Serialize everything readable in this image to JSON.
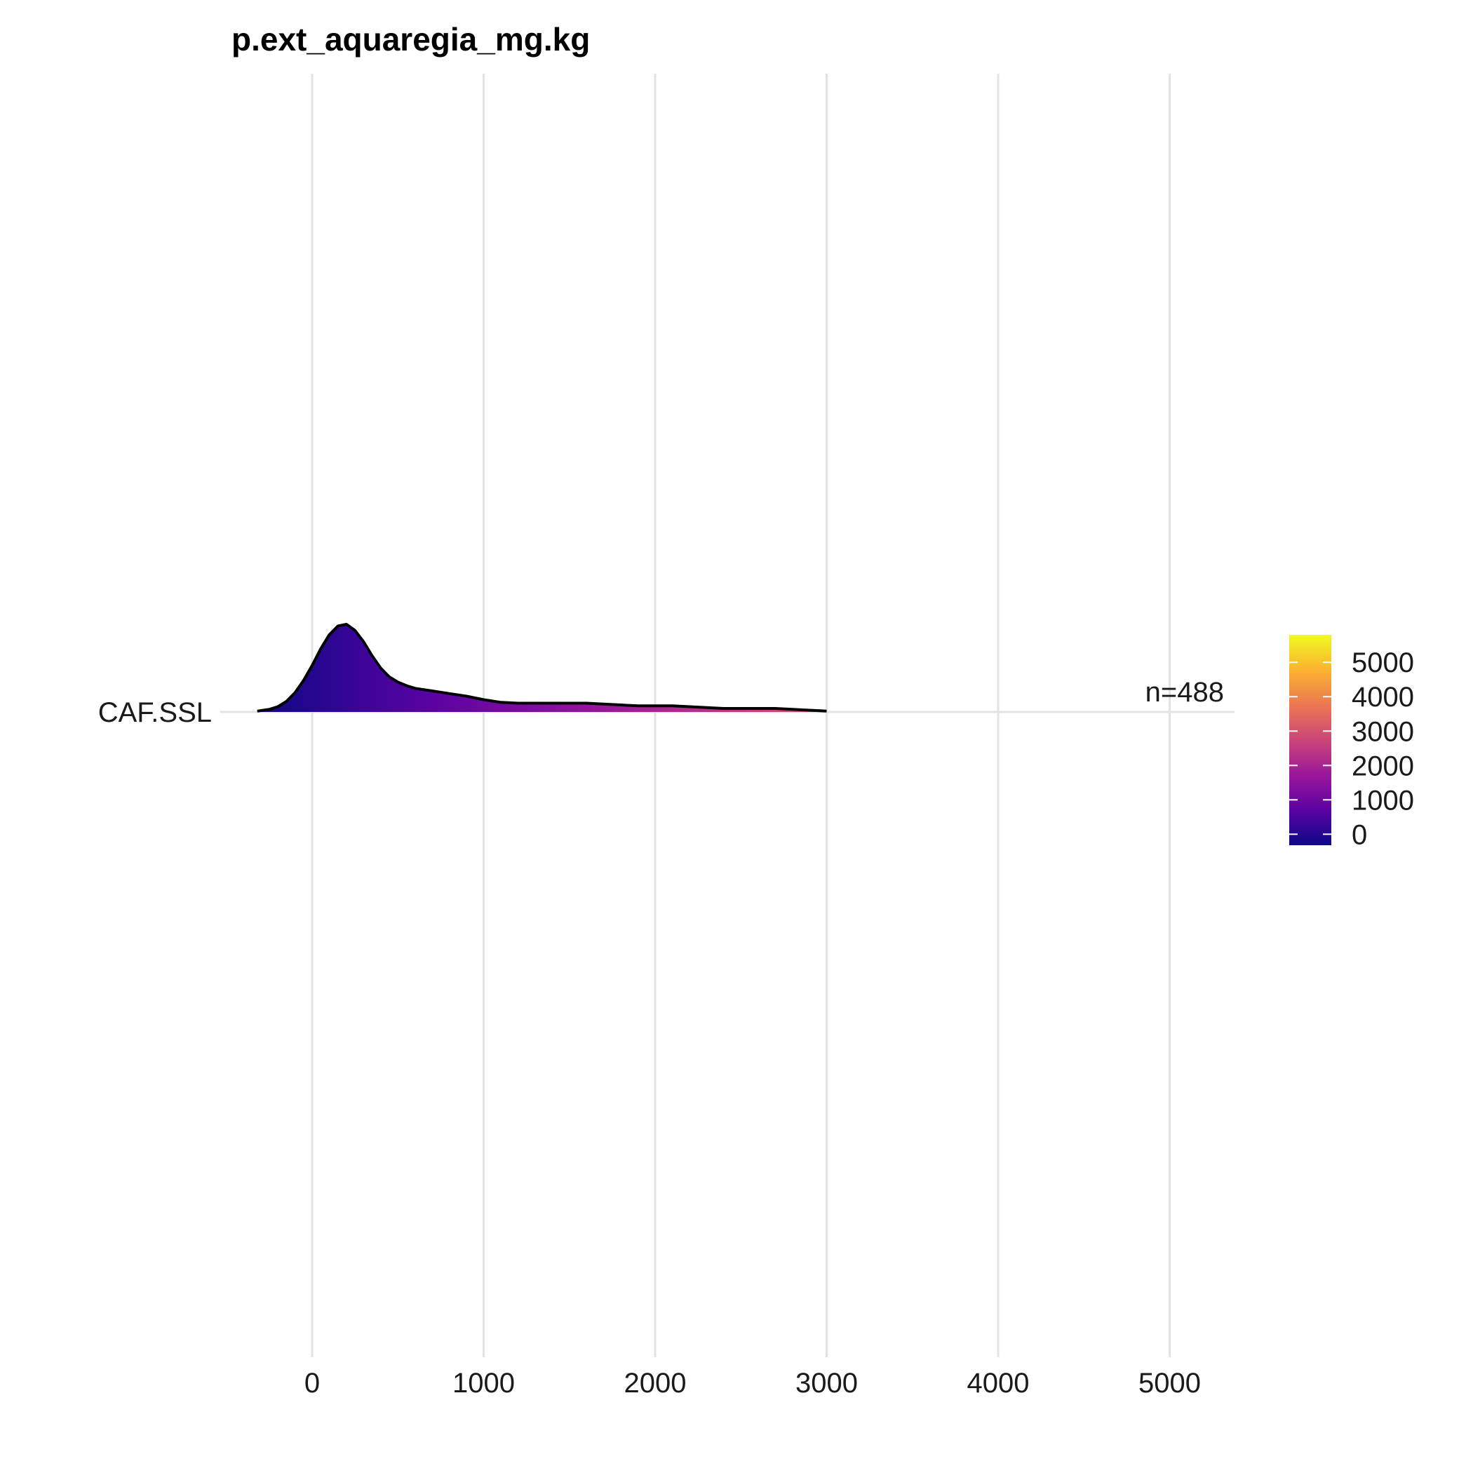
{
  "chart_data": {
    "type": "area",
    "title": "p.ext_aquaregia_mg.kg",
    "xlim": [
      -320,
      5400
    ],
    "x_ticks": [
      0,
      1000,
      2000,
      3000,
      4000,
      5000
    ],
    "categories": [
      "CAF.SSL"
    ],
    "annotation": "n=488",
    "grid": true,
    "legend": {
      "placement": "right",
      "type": "colorbar",
      "palette": "plasma",
      "ticks": [
        0,
        1000,
        2000,
        3000,
        4000,
        5000
      ],
      "range": [
        -320,
        5800
      ],
      "colors": [
        "#0d0887",
        "#5b02a3",
        "#9a179b",
        "#cb4678",
        "#eb7852",
        "#fbb32f",
        "#f0f921"
      ]
    },
    "series": [
      {
        "category": "CAF.SSL",
        "x": [
          -320,
          -250,
          -200,
          -150,
          -100,
          -50,
          0,
          50,
          100,
          150,
          200,
          250,
          300,
          350,
          400,
          450,
          500,
          550,
          600,
          700,
          800,
          900,
          1000,
          1100,
          1200,
          1300,
          1400,
          1500,
          1600,
          1700,
          1800,
          1900,
          2000,
          2100,
          2200,
          2300,
          2400,
          2500,
          2600,
          2700,
          2800,
          2900,
          3000
        ],
        "y": [
          0.01,
          0.03,
          0.06,
          0.12,
          0.22,
          0.36,
          0.53,
          0.72,
          0.88,
          0.98,
          1.0,
          0.93,
          0.8,
          0.64,
          0.5,
          0.4,
          0.34,
          0.3,
          0.27,
          0.24,
          0.21,
          0.18,
          0.14,
          0.11,
          0.1,
          0.1,
          0.1,
          0.1,
          0.1,
          0.09,
          0.08,
          0.07,
          0.07,
          0.07,
          0.06,
          0.05,
          0.04,
          0.04,
          0.04,
          0.04,
          0.03,
          0.02,
          0.01
        ]
      }
    ]
  }
}
